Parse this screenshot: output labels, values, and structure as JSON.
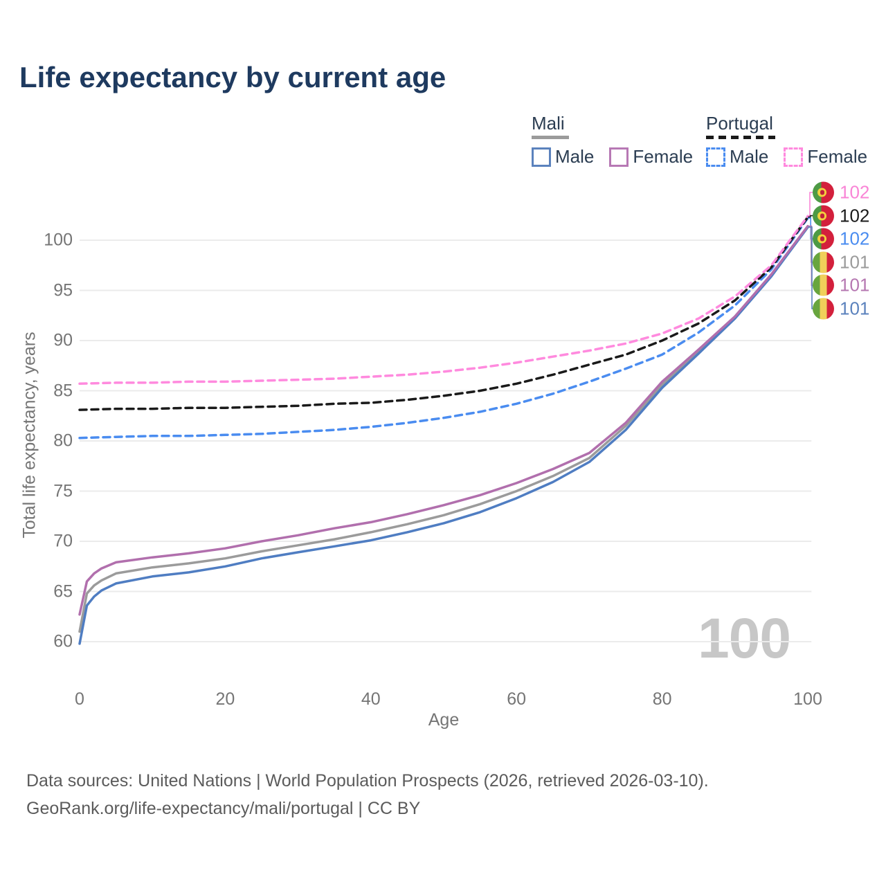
{
  "header": {
    "title": "Life expectancy by current age"
  },
  "legend": {
    "mali": {
      "label": "Mali",
      "male": "Male",
      "female": "Female"
    },
    "portugal": {
      "label": "Portugal",
      "male": "Male",
      "female": "Female"
    }
  },
  "watermark": "100",
  "end_labels": [
    {
      "flag": "portugal",
      "value": "102",
      "color": "#f985d6",
      "series": "Portugal Female"
    },
    {
      "flag": "portugal",
      "value": "102",
      "color": "#1a1a1a",
      "series": "Portugal Both sexes"
    },
    {
      "flag": "portugal",
      "value": "102",
      "color": "#4a8cf0",
      "series": "Portugal Male"
    },
    {
      "flag": "mali",
      "value": "101",
      "color": "#9b9b9b",
      "series": "Mali Both sexes"
    },
    {
      "flag": "mali",
      "value": "101",
      "color": "#b577b1",
      "series": "Mali Female"
    },
    {
      "flag": "mali",
      "value": "101",
      "color": "#5b82bd",
      "series": "Mali Male"
    }
  ],
  "footer": {
    "line1": "Data sources: United Nations | World Population Prospects (2026, retrieved 2026-03-10).",
    "line2": "GeoRank.org/life-expectancy/mali/portugal | CC BY"
  },
  "chart_data": {
    "type": "line",
    "title": "Life expectancy by current age",
    "xlabel": "Age",
    "ylabel": "Total life expectancy, years",
    "xlim": [
      0,
      100
    ],
    "ylim": [
      58,
      103.5
    ],
    "x_ticks": [
      0,
      20,
      40,
      60,
      80,
      100
    ],
    "y_ticks": [
      60,
      65,
      70,
      75,
      80,
      85,
      90,
      95,
      100
    ],
    "grid": "horizontal-only",
    "legend_position": "top-right",
    "series": [
      {
        "name": "Mali Both sexes",
        "country": "Mali",
        "sex": "Both",
        "style": "solid",
        "color": "#9b9b9b",
        "x": [
          0,
          1,
          2,
          3,
          5,
          10,
          15,
          20,
          25,
          30,
          35,
          40,
          45,
          50,
          55,
          60,
          65,
          70,
          75,
          80,
          85,
          90,
          95,
          100
        ],
        "y": [
          61.0,
          64.8,
          65.6,
          66.1,
          66.8,
          67.4,
          67.8,
          68.3,
          69.0,
          69.6,
          70.2,
          70.9,
          71.7,
          72.6,
          73.7,
          75.0,
          76.5,
          78.3,
          81.5,
          85.6,
          88.9,
          92.3,
          96.5,
          101.3
        ]
      },
      {
        "name": "Mali Male",
        "country": "Mali",
        "sex": "Male",
        "style": "solid",
        "color": "#4f7dc2",
        "x": [
          0,
          1,
          2,
          3,
          5,
          10,
          15,
          20,
          25,
          30,
          35,
          40,
          45,
          50,
          55,
          60,
          65,
          70,
          75,
          80,
          85,
          90,
          95,
          100
        ],
        "y": [
          59.8,
          63.6,
          64.5,
          65.1,
          65.8,
          66.5,
          66.9,
          67.5,
          68.3,
          68.9,
          69.5,
          70.1,
          70.9,
          71.8,
          72.9,
          74.3,
          75.9,
          77.9,
          81.1,
          85.3,
          88.7,
          92.2,
          96.4,
          101.3
        ]
      },
      {
        "name": "Mali Female",
        "country": "Mali",
        "sex": "Female",
        "style": "solid",
        "color": "#b16fad",
        "x": [
          0,
          1,
          2,
          3,
          5,
          10,
          15,
          20,
          25,
          30,
          35,
          40,
          45,
          50,
          55,
          60,
          65,
          70,
          75,
          80,
          85,
          90,
          95,
          100
        ],
        "y": [
          62.7,
          66.0,
          66.8,
          67.3,
          67.9,
          68.4,
          68.8,
          69.3,
          70.0,
          70.6,
          71.3,
          71.9,
          72.7,
          73.6,
          74.6,
          75.8,
          77.2,
          78.8,
          81.8,
          85.9,
          89.1,
          92.4,
          96.6,
          101.4
        ]
      },
      {
        "name": "Portugal Male",
        "country": "Portugal",
        "sex": "Male",
        "style": "dashed",
        "color": "#4a8cf0",
        "x": [
          0,
          5,
          10,
          15,
          20,
          25,
          30,
          35,
          40,
          45,
          50,
          55,
          60,
          65,
          70,
          75,
          80,
          85,
          90,
          95,
          100
        ],
        "y": [
          80.3,
          80.4,
          80.5,
          80.5,
          80.6,
          80.7,
          80.9,
          81.1,
          81.4,
          81.8,
          82.3,
          82.9,
          83.7,
          84.7,
          85.9,
          87.2,
          88.6,
          90.8,
          93.5,
          97.1,
          102.2
        ]
      },
      {
        "name": "Portugal Both sexes",
        "country": "Portugal",
        "sex": "Both",
        "style": "dashed",
        "color": "#1a1a1a",
        "x": [
          0,
          5,
          10,
          15,
          20,
          25,
          30,
          35,
          40,
          45,
          50,
          55,
          60,
          65,
          70,
          75,
          80,
          85,
          90,
          95,
          100
        ],
        "y": [
          83.1,
          83.2,
          83.2,
          83.3,
          83.3,
          83.4,
          83.5,
          83.7,
          83.8,
          84.1,
          84.5,
          85.0,
          85.7,
          86.6,
          87.6,
          88.6,
          90.0,
          91.7,
          94.0,
          97.3,
          102.3
        ]
      },
      {
        "name": "Portugal Female",
        "country": "Portugal",
        "sex": "Female",
        "style": "dashed",
        "color": "#ff8ade",
        "x": [
          0,
          5,
          10,
          15,
          20,
          25,
          30,
          35,
          40,
          45,
          50,
          55,
          60,
          65,
          70,
          75,
          80,
          85,
          90,
          95,
          100
        ],
        "y": [
          85.7,
          85.8,
          85.8,
          85.9,
          85.9,
          86.0,
          86.1,
          86.2,
          86.4,
          86.6,
          86.9,
          87.3,
          87.8,
          88.4,
          89.0,
          89.7,
          90.7,
          92.2,
          94.4,
          97.5,
          102.4
        ]
      }
    ]
  }
}
